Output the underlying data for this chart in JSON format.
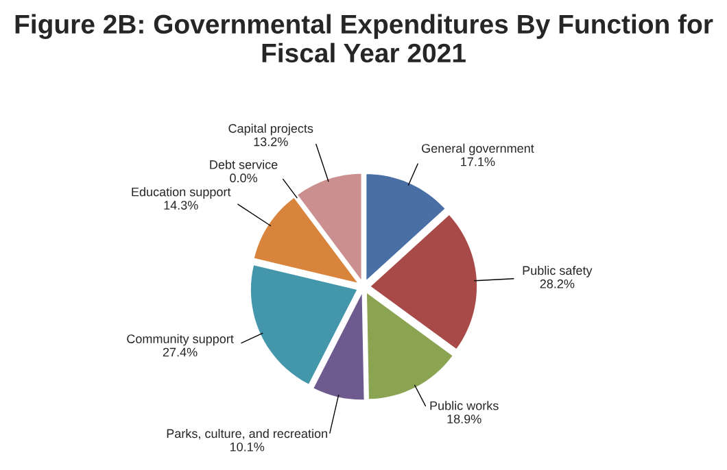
{
  "chart_data": {
    "type": "pie",
    "title": "Figure 2B: Governmental Expenditures By Function for Fiscal Year 2021",
    "categories": [
      "General government",
      "Public safety",
      "Public works",
      "Parks, culture, and recreation",
      "Community support",
      "Education support",
      "Debt service",
      "Capital projects"
    ],
    "values": [
      17.1,
      28.2,
      18.9,
      10.1,
      27.4,
      14.3,
      0.0,
      13.2
    ],
    "value_labels": [
      "17.1%",
      "28.2%",
      "18.9%",
      "10.1%",
      "27.4%",
      "14.3%",
      "0.0%",
      "13.2%"
    ],
    "colors": [
      "#4a6fa5",
      "#a84a48",
      "#8ba452",
      "#6e5a8f",
      "#4496ab",
      "#d9843d",
      "#2f4f6f",
      "#cc8f8f"
    ]
  }
}
